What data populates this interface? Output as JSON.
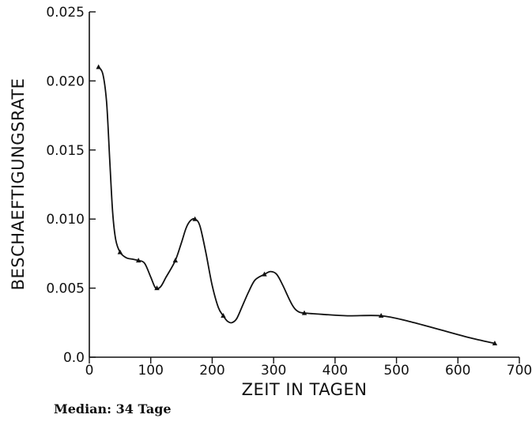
{
  "chart_data": {
    "type": "line",
    "title": "",
    "xlabel": "ZEIT IN TAGEN",
    "ylabel": "BESCHAEFTIGUNGSRATE",
    "xlim": [
      0,
      700
    ],
    "ylim": [
      0,
      0.025
    ],
    "x_ticks": [
      0,
      100,
      200,
      300,
      400,
      500,
      600,
      700
    ],
    "x_tick_labels": [
      "0",
      "100",
      "200",
      "300",
      "400",
      "500",
      "600",
      "700"
    ],
    "y_ticks": [
      0,
      0.005,
      0.01,
      0.015,
      0.02,
      0.025
    ],
    "y_tick_labels": [
      "0.0",
      "0.005",
      "0.010",
      "0.015",
      "0.020",
      "0.025"
    ],
    "grid": false,
    "legend": "none",
    "series": [
      {
        "points": [
          [
            15,
            0.021
          ],
          [
            50,
            0.0076
          ],
          [
            80,
            0.007
          ],
          [
            110,
            0.005
          ],
          [
            140,
            0.007
          ],
          [
            172,
            0.01
          ],
          [
            218,
            0.003
          ],
          [
            285,
            0.006
          ],
          [
            350,
            0.0032
          ],
          [
            475,
            0.003
          ],
          [
            660,
            0.001
          ]
        ],
        "curve": [
          [
            15,
            0.021
          ],
          [
            22,
            0.0205
          ],
          [
            28,
            0.0185
          ],
          [
            33,
            0.0145
          ],
          [
            38,
            0.0105
          ],
          [
            43,
            0.0085
          ],
          [
            50,
            0.0076
          ],
          [
            60,
            0.0072
          ],
          [
            70,
            0.0071
          ],
          [
            80,
            0.007
          ],
          [
            90,
            0.0068
          ],
          [
            100,
            0.0058
          ],
          [
            108,
            0.005
          ],
          [
            116,
            0.0051
          ],
          [
            125,
            0.0058
          ],
          [
            140,
            0.007
          ],
          [
            150,
            0.0083
          ],
          [
            158,
            0.0094
          ],
          [
            165,
            0.0099
          ],
          [
            172,
            0.01
          ],
          [
            180,
            0.0095
          ],
          [
            190,
            0.0075
          ],
          [
            200,
            0.0052
          ],
          [
            210,
            0.0036
          ],
          [
            218,
            0.003
          ],
          [
            225,
            0.0026
          ],
          [
            232,
            0.0025
          ],
          [
            240,
            0.0028
          ],
          [
            250,
            0.0038
          ],
          [
            260,
            0.0048
          ],
          [
            270,
            0.0056
          ],
          [
            285,
            0.006
          ],
          [
            295,
            0.0062
          ],
          [
            305,
            0.006
          ],
          [
            315,
            0.0052
          ],
          [
            330,
            0.0038
          ],
          [
            340,
            0.0033
          ],
          [
            350,
            0.0032
          ],
          [
            380,
            0.0031
          ],
          [
            420,
            0.003
          ],
          [
            475,
            0.003
          ],
          [
            520,
            0.0026
          ],
          [
            570,
            0.002
          ],
          [
            620,
            0.0014
          ],
          [
            660,
            0.001
          ]
        ]
      }
    ],
    "caption": "Median:  34 Tage"
  }
}
